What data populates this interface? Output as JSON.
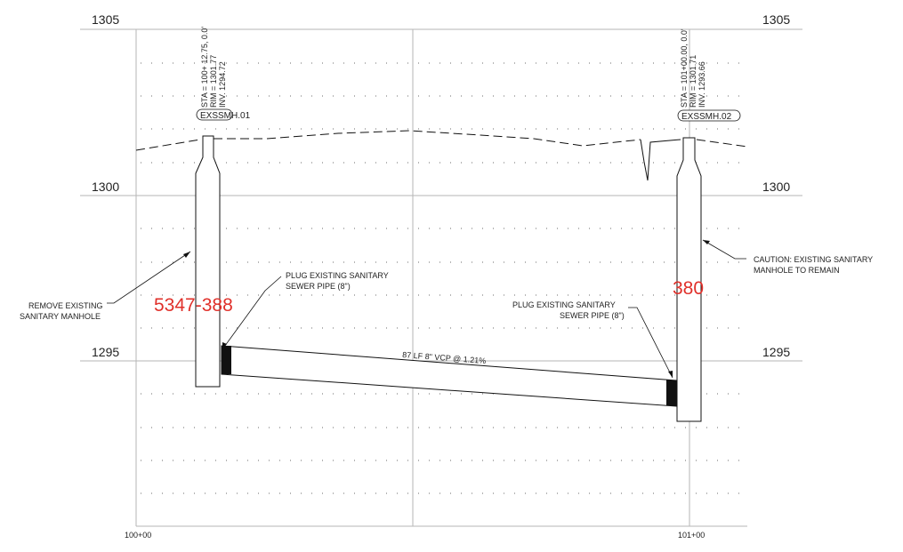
{
  "elevation_labels": {
    "e1305": "1305",
    "e1300": "1300",
    "e1295": "1295"
  },
  "station_labels": {
    "start": "100+00",
    "end": "101+00"
  },
  "manholes": {
    "mh1": {
      "tag": "EXSSMH.01",
      "sta": "STA = 100+ 12.75, 0.0'",
      "rim": "RIM = 1301.77",
      "inv": "INV. 1294.72",
      "red_label": "5347-388"
    },
    "mh2": {
      "tag": "EXSSMH.02",
      "sta": "STA = 101+00.00, 0.0'",
      "rim": "RIM = 1301.71",
      "inv": "INV. 1293.66",
      "red_label": "380"
    }
  },
  "pipe_label": "87 LF 8\" VCP @ 1.21%",
  "notes": {
    "remove_line1": "REMOVE EXISTING",
    "remove_line2": "SANITARY MANHOLE",
    "plug1_line1": "PLUG EXISTING SANITARY",
    "plug1_line2": "SEWER PIPE (8\")",
    "plug2_line1": "PLUG EXISTING SANITARY",
    "plug2_line2": "SEWER PIPE (8\")",
    "caution_line1": "CAUTION: EXISTING SANITARY",
    "caution_line2": "MANHOLE TO REMAIN"
  },
  "colors": {
    "annotation_red": "#e0302a",
    "linework": "#111111",
    "grid": "#bbbbbb"
  }
}
